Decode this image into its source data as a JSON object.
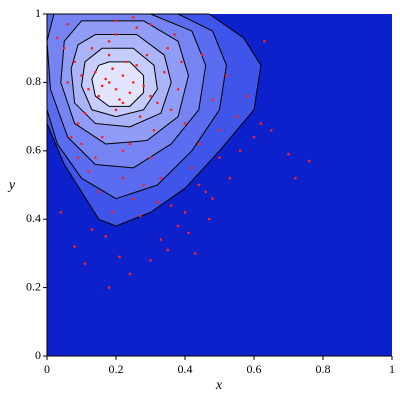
{
  "chart_data": {
    "type": "contour-scatter",
    "x_label": "x",
    "y_label": "y",
    "xlim": [
      0,
      1
    ],
    "ylim": [
      0,
      1
    ],
    "xticks": [
      0,
      0.2,
      0.4,
      0.6,
      0.8,
      1
    ],
    "yticks": [
      0,
      0.2,
      0.4,
      0.6,
      0.8,
      1
    ],
    "background_color": "#0c20cc",
    "contour_line_color": "#000000",
    "contour_colors": [
      "#3f55ea",
      "#5a6cef",
      "#7584f2",
      "#909cf5",
      "#abb4f8",
      "#c6ccfb",
      "#e2e5fd"
    ],
    "contours": [
      {
        "x": [
          0,
          0.47,
          0.57,
          0.62,
          0.6,
          0.5,
          0.4,
          0.3,
          0.2,
          0.15,
          0.1,
          0.05,
          0
        ],
        "y": [
          1,
          1,
          0.93,
          0.85,
          0.72,
          0.6,
          0.49,
          0.42,
          0.38,
          0.4,
          0.48,
          0.56,
          0.68
        ]
      },
      {
        "x": [
          0,
          0.38,
          0.48,
          0.52,
          0.5,
          0.42,
          0.32,
          0.2,
          0.1,
          0.03,
          0
        ],
        "y": [
          1,
          1,
          0.95,
          0.85,
          0.72,
          0.6,
          0.5,
          0.46,
          0.52,
          0.62,
          0.72
        ]
      },
      {
        "x": [
          0.02,
          0.3,
          0.42,
          0.46,
          0.44,
          0.36,
          0.25,
          0.14,
          0.06,
          0.01,
          0
        ],
        "y": [
          1,
          1,
          0.95,
          0.85,
          0.72,
          0.62,
          0.55,
          0.56,
          0.64,
          0.78,
          0.92
        ]
      },
      {
        "x": [
          0.1,
          0.28,
          0.38,
          0.41,
          0.38,
          0.29,
          0.17,
          0.08,
          0.04,
          0.05
        ],
        "y": [
          0.98,
          0.98,
          0.92,
          0.82,
          0.7,
          0.63,
          0.62,
          0.68,
          0.8,
          0.92
        ]
      },
      {
        "x": [
          0.14,
          0.26,
          0.34,
          0.36,
          0.33,
          0.24,
          0.14,
          0.08,
          0.07,
          0.09
        ],
        "y": [
          0.94,
          0.94,
          0.88,
          0.8,
          0.71,
          0.67,
          0.68,
          0.74,
          0.84,
          0.91
        ]
      },
      {
        "x": [
          0.16,
          0.25,
          0.31,
          0.32,
          0.28,
          0.2,
          0.13,
          0.1,
          0.11
        ],
        "y": [
          0.9,
          0.9,
          0.85,
          0.78,
          0.72,
          0.7,
          0.72,
          0.79,
          0.86
        ]
      },
      {
        "x": [
          0.18,
          0.24,
          0.28,
          0.28,
          0.24,
          0.18,
          0.14,
          0.13,
          0.15
        ],
        "y": [
          0.86,
          0.86,
          0.82,
          0.77,
          0.73,
          0.73,
          0.76,
          0.81,
          0.85
        ]
      }
    ],
    "points": {
      "color": "#ff2020",
      "x": [
        0.18,
        0.2,
        0.22,
        0.16,
        0.24,
        0.19,
        0.21,
        0.17,
        0.23,
        0.15,
        0.25,
        0.2,
        0.18,
        0.22,
        0.14,
        0.26,
        0.12,
        0.28,
        0.1,
        0.3,
        0.13,
        0.27,
        0.11,
        0.29,
        0.08,
        0.32,
        0.06,
        0.34,
        0.09,
        0.31,
        0.05,
        0.36,
        0.07,
        0.38,
        0.16,
        0.24,
        0.2,
        0.18,
        0.22,
        0.26,
        0.14,
        0.3,
        0.1,
        0.33,
        0.4,
        0.42,
        0.44,
        0.46,
        0.48,
        0.5,
        0.35,
        0.37,
        0.39,
        0.28,
        0.25,
        0.22,
        0.19,
        0.15,
        0.12,
        0.09,
        0.45,
        0.52,
        0.55,
        0.58,
        0.6,
        0.62,
        0.65,
        0.7,
        0.72,
        0.76,
        0.63,
        0.47,
        0.43,
        0.41,
        0.38,
        0.33,
        0.3,
        0.27,
        0.24,
        0.21,
        0.18,
        0.32,
        0.36,
        0.4,
        0.44,
        0.5,
        0.56,
        0.2,
        0.25,
        0.3,
        0.17,
        0.13,
        0.08,
        0.04,
        0.06,
        0.03,
        0.11,
        0.35,
        0.48,
        0.53
      ],
      "y": [
        0.8,
        0.78,
        0.82,
        0.79,
        0.77,
        0.84,
        0.75,
        0.81,
        0.86,
        0.76,
        0.8,
        0.72,
        0.88,
        0.74,
        0.83,
        0.85,
        0.78,
        0.79,
        0.82,
        0.76,
        0.9,
        0.7,
        0.71,
        0.88,
        0.86,
        0.74,
        0.8,
        0.83,
        0.68,
        0.66,
        0.9,
        0.72,
        0.64,
        0.78,
        0.64,
        0.62,
        0.94,
        0.92,
        0.6,
        0.96,
        0.58,
        0.58,
        0.62,
        0.52,
        0.68,
        0.55,
        0.62,
        0.48,
        0.75,
        0.58,
        0.9,
        0.94,
        0.86,
        0.5,
        0.46,
        0.52,
        0.42,
        0.48,
        0.54,
        0.58,
        0.88,
        0.82,
        0.7,
        0.76,
        0.64,
        0.68,
        0.66,
        0.59,
        0.52,
        0.57,
        0.92,
        0.4,
        0.3,
        0.36,
        0.38,
        0.34,
        0.28,
        0.41,
        0.24,
        0.29,
        0.2,
        0.45,
        0.44,
        0.42,
        0.5,
        0.66,
        0.6,
        0.98,
        0.99,
        0.97,
        0.35,
        0.37,
        0.32,
        0.42,
        0.97,
        0.93,
        0.27,
        0.31,
        0.46,
        0.52
      ]
    }
  }
}
